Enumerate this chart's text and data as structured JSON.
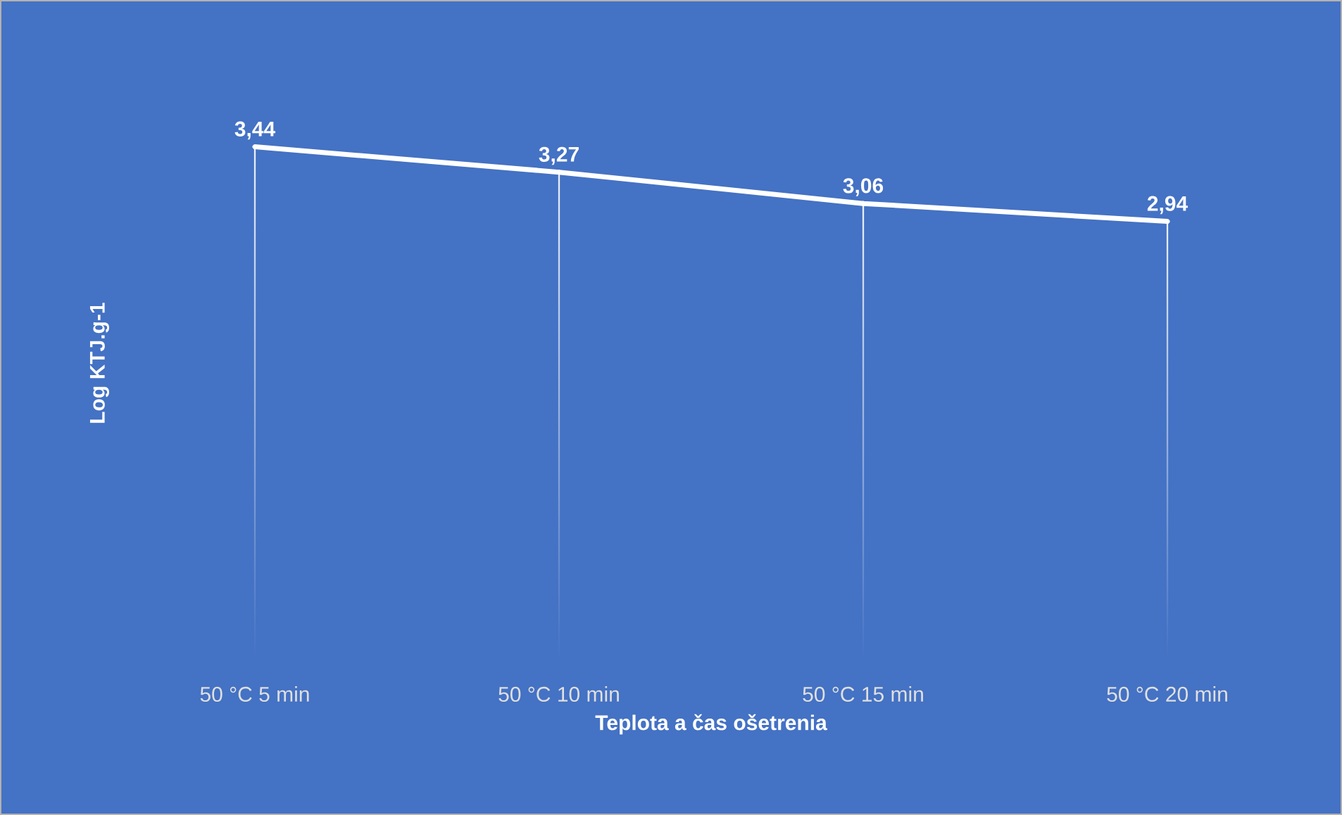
{
  "chart_data": {
    "type": "line",
    "xlabel": "Teplota a čas ošetrenia",
    "ylabel": "Log KTJ.g-1",
    "categories": [
      "50 °C 5 min",
      "50 °C 10 min",
      "50 °C 15 min",
      "50 °C 20 min"
    ],
    "series": [
      {
        "color": "#ffffff",
        "values": [
          3.44,
          3.27,
          3.06,
          2.94
        ],
        "value_labels": [
          "3,44",
          "3,27",
          "3,06",
          "2,94"
        ]
      },
      {
        "type": "lollipop",
        "color": "#ffffff",
        "values": [
          3.44,
          3.27,
          3.06,
          2.94
        ]
      }
    ],
    "line_style": "solid"
  }
}
